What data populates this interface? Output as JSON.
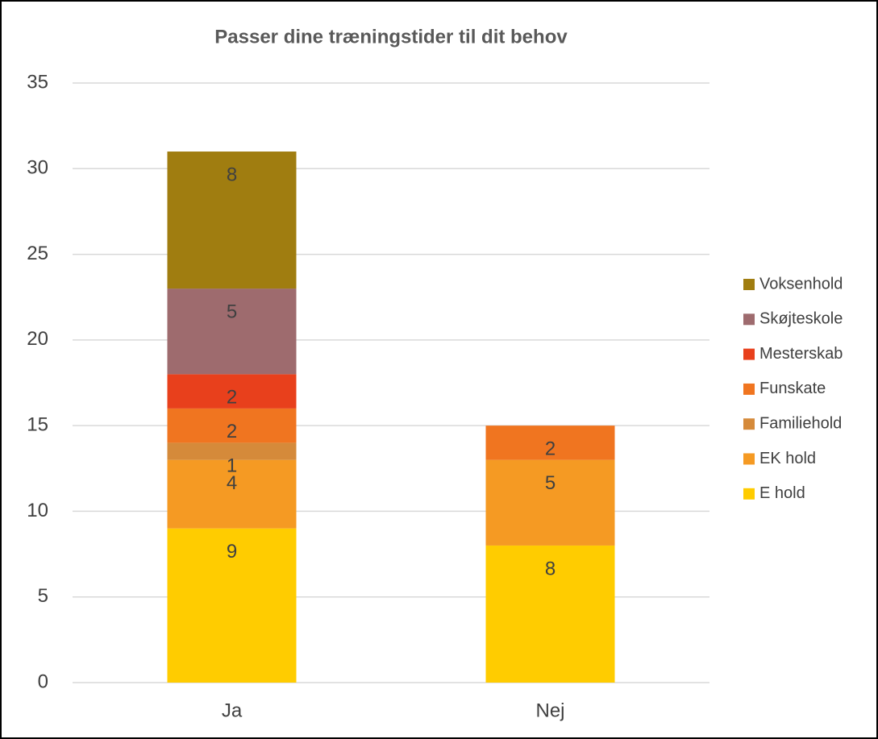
{
  "chart_data": {
    "type": "stacked_bar",
    "title": "Passer dine træningstider til dit behov",
    "categories": [
      "Ja",
      "Nej"
    ],
    "series": [
      {
        "name": "E hold",
        "color": "#ffcc00",
        "values": [
          9,
          8
        ]
      },
      {
        "name": "EK hold",
        "color": "#f59a23",
        "values": [
          4,
          5
        ]
      },
      {
        "name": "Familiehold",
        "color": "#d58a3a",
        "values": [
          1,
          null
        ]
      },
      {
        "name": "Funskate",
        "color": "#f07520",
        "values": [
          2,
          2
        ]
      },
      {
        "name": "Mesterskab",
        "color": "#e8401c",
        "values": [
          2,
          null
        ]
      },
      {
        "name": "Skøjteskole",
        "color": "#9e6b6e",
        "values": [
          5,
          null
        ]
      },
      {
        "name": "Voksenhold",
        "color": "#a07d10",
        "values": [
          8,
          null
        ]
      }
    ],
    "ylim": [
      0,
      35
    ],
    "yticks": [
      0,
      5,
      10,
      15,
      20,
      25,
      30,
      35
    ],
    "grid": true,
    "legend": "right"
  }
}
